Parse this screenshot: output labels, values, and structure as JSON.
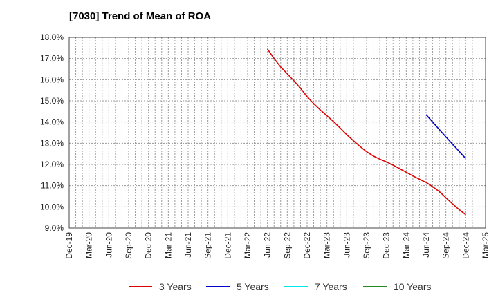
{
  "chart_data": {
    "type": "line",
    "title": "[7030]  Trend of Mean of ROA",
    "xlabel": "",
    "ylabel": "",
    "ylim": [
      9.0,
      18.0
    ],
    "y_ticks": [
      "18.0%",
      "17.0%",
      "16.0%",
      "15.0%",
      "14.0%",
      "13.0%",
      "12.0%",
      "11.0%",
      "10.0%",
      "9.0%"
    ],
    "categories": [
      "Dec-19",
      "Mar-20",
      "Jun-20",
      "Sep-20",
      "Dec-20",
      "Mar-21",
      "Jun-21",
      "Sep-21",
      "Dec-21",
      "Mar-22",
      "Jun-22",
      "Sep-22",
      "Dec-22",
      "Mar-23",
      "Jun-23",
      "Sep-23",
      "Dec-23",
      "Mar-24",
      "Jun-24",
      "Sep-24",
      "Dec-24",
      "Mar-25"
    ],
    "grid": true,
    "legend_position": "bottom",
    "series": [
      {
        "name": "3 Years",
        "color": "#dd0000",
        "points": [
          {
            "x": "Jun-22",
            "y": 17.45
          },
          {
            "x": "Jul-22",
            "y": 17.0
          },
          {
            "x": "Aug-22",
            "y": 16.6
          },
          {
            "x": "Sep-22",
            "y": 16.28
          },
          {
            "x": "Oct-22",
            "y": 15.95
          },
          {
            "x": "Nov-22",
            "y": 15.6
          },
          {
            "x": "Dec-22",
            "y": 15.2
          },
          {
            "x": "Jan-23",
            "y": 14.87
          },
          {
            "x": "Feb-23",
            "y": 14.57
          },
          {
            "x": "Mar-23",
            "y": 14.3
          },
          {
            "x": "Apr-23",
            "y": 14.02
          },
          {
            "x": "May-23",
            "y": 13.72
          },
          {
            "x": "Jun-23",
            "y": 13.4
          },
          {
            "x": "Jul-23",
            "y": 13.12
          },
          {
            "x": "Aug-23",
            "y": 12.85
          },
          {
            "x": "Sep-23",
            "y": 12.6
          },
          {
            "x": "Oct-23",
            "y": 12.4
          },
          {
            "x": "Nov-23",
            "y": 12.25
          },
          {
            "x": "Dec-23",
            "y": 12.12
          },
          {
            "x": "Jan-24",
            "y": 11.97
          },
          {
            "x": "Feb-24",
            "y": 11.8
          },
          {
            "x": "Mar-24",
            "y": 11.63
          },
          {
            "x": "Apr-24",
            "y": 11.46
          },
          {
            "x": "May-24",
            "y": 11.3
          },
          {
            "x": "Jun-24",
            "y": 11.15
          },
          {
            "x": "Jul-24",
            "y": 10.95
          },
          {
            "x": "Aug-24",
            "y": 10.72
          },
          {
            "x": "Sep-24",
            "y": 10.43
          },
          {
            "x": "Oct-24",
            "y": 10.14
          },
          {
            "x": "Nov-24",
            "y": 9.87
          },
          {
            "x": "Dec-24",
            "y": 9.63
          }
        ]
      },
      {
        "name": "5 Years",
        "color": "#0000cc",
        "points": [
          {
            "x": "Jun-24",
            "y": 14.35
          },
          {
            "x": "Sep-24",
            "y": 13.3
          },
          {
            "x": "Dec-24",
            "y": 12.28
          }
        ]
      },
      {
        "name": "7 Years",
        "color": "#00e5ee",
        "points": []
      },
      {
        "name": "10 Years",
        "color": "#228b22",
        "points": []
      }
    ]
  }
}
